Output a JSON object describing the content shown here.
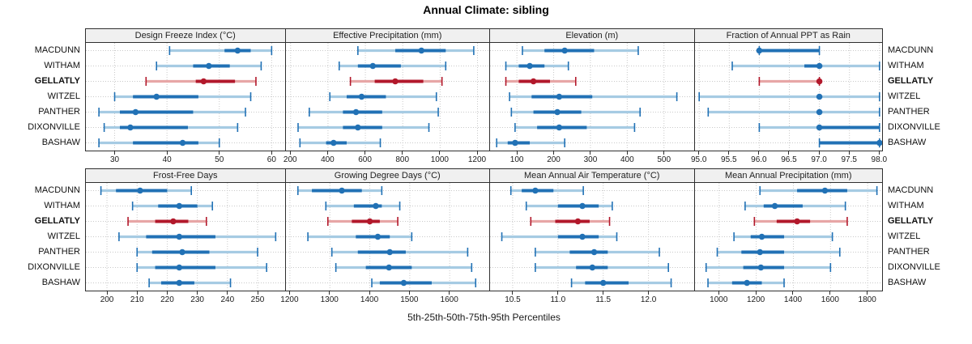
{
  "title": "Annual Climate: sibling",
  "xlabel": "5th-25th-50th-75th-95th Percentiles",
  "sites": [
    "MACDUNN",
    "WITHAM",
    "GELLATLY",
    "WITZEL",
    "PANTHER",
    "DIXONVILLE",
    "BASHAW"
  ],
  "highlight_site": "GELLATLY",
  "colors": {
    "series_dark": "#2171b5",
    "series_light": "#a6cbe3",
    "highlight_dark": "#b2182b",
    "highlight_light": "#e7a6a6",
    "header_bg": "#f0f0f0",
    "grid": "#c9c9c9",
    "border": "#2f2f2f"
  },
  "chart_data": [
    {
      "type": "scatter",
      "subtype": "percentile-interval",
      "title": "Design Freeze Index (°C)",
      "percentiles": [
        "5th",
        "25th",
        "50th",
        "75th",
        "95th"
      ],
      "xlim": [
        24.5,
        62.5
      ],
      "ticks": [
        30,
        40,
        50,
        60
      ],
      "tick_labels": [
        "30",
        "40",
        "50",
        "60"
      ],
      "grid": true,
      "series": [
        {
          "name": "MACDUNN",
          "values": [
            40.5,
            51,
            53.5,
            56,
            60
          ]
        },
        {
          "name": "WITHAM",
          "values": [
            38,
            45,
            48,
            52,
            58
          ]
        },
        {
          "name": "GELLATLY",
          "values": [
            36,
            45.5,
            47,
            53,
            57
          ]
        },
        {
          "name": "WITZEL",
          "values": [
            30,
            33.5,
            38,
            46,
            56
          ]
        },
        {
          "name": "PANTHER",
          "values": [
            27,
            31,
            34,
            45,
            55
          ]
        },
        {
          "name": "DIXONVILLE",
          "values": [
            28,
            31,
            33,
            44,
            53.5
          ]
        },
        {
          "name": "BASHAW",
          "values": [
            27,
            33.5,
            43,
            46,
            50
          ]
        }
      ]
    },
    {
      "type": "scatter",
      "subtype": "percentile-interval",
      "title": "Effective Precipitation (mm)",
      "percentiles": [
        "5th",
        "25th",
        "50th",
        "75th",
        "95th"
      ],
      "xlim": [
        175,
        1265
      ],
      "ticks": [
        200,
        400,
        600,
        800,
        1000,
        1200
      ],
      "tick_labels": [
        "200",
        "400",
        "600",
        "800",
        "1000",
        "1200"
      ],
      "grid": true,
      "series": [
        {
          "name": "MACDUNN",
          "values": [
            560,
            760,
            900,
            1030,
            1180
          ]
        },
        {
          "name": "WITHAM",
          "values": [
            460,
            560,
            640,
            790,
            1030
          ]
        },
        {
          "name": "GELLATLY",
          "values": [
            520,
            650,
            760,
            910,
            1010
          ]
        },
        {
          "name": "WITZEL",
          "values": [
            410,
            500,
            580,
            710,
            980
          ]
        },
        {
          "name": "PANTHER",
          "values": [
            300,
            480,
            550,
            690,
            990
          ]
        },
        {
          "name": "DIXONVILLE",
          "values": [
            240,
            480,
            560,
            690,
            940
          ]
        },
        {
          "name": "BASHAW",
          "values": [
            250,
            390,
            430,
            500,
            680
          ]
        }
      ]
    },
    {
      "type": "scatter",
      "subtype": "percentile-interval",
      "title": "Elevation (m)",
      "percentiles": [
        "5th",
        "25th",
        "50th",
        "75th",
        "95th"
      ],
      "xlim": [
        27,
        581
      ],
      "ticks": [
        100,
        200,
        300,
        400,
        500
      ],
      "tick_labels": [
        "100",
        "200",
        "300",
        "400",
        "500"
      ],
      "grid": true,
      "series": [
        {
          "name": "MACDUNN",
          "values": [
            115,
            175,
            230,
            310,
            430
          ]
        },
        {
          "name": "WITHAM",
          "values": [
            70,
            105,
            135,
            175,
            240
          ]
        },
        {
          "name": "GELLATLY",
          "values": [
            70,
            105,
            145,
            190,
            260
          ]
        },
        {
          "name": "WITZEL",
          "values": [
            80,
            140,
            215,
            305,
            535
          ]
        },
        {
          "name": "PANTHER",
          "values": [
            85,
            145,
            210,
            275,
            435
          ]
        },
        {
          "name": "DIXONVILLE",
          "values": [
            95,
            155,
            215,
            290,
            420
          ]
        },
        {
          "name": "BASHAW",
          "values": [
            45,
            75,
            95,
            135,
            230
          ]
        }
      ]
    },
    {
      "type": "scatter",
      "subtype": "percentile-interval",
      "title": "Fraction of Annual PPT as Rain",
      "percentiles": [
        "5th",
        "25th",
        "50th",
        "75th",
        "95th"
      ],
      "xlim": [
        94.93,
        98.05
      ],
      "ticks": [
        95.0,
        95.5,
        96.0,
        96.5,
        97.0,
        97.5,
        98.0
      ],
      "tick_labels": [
        "95.0",
        "95.5",
        "96.0",
        "96.5",
        "97.0",
        "97.5",
        "98.0"
      ],
      "grid": true,
      "series": [
        {
          "name": "MACDUNN",
          "values": [
            96,
            96,
            96,
            97,
            97
          ]
        },
        {
          "name": "WITHAM",
          "values": [
            95.55,
            96.75,
            97,
            97,
            98
          ]
        },
        {
          "name": "GELLATLY",
          "values": [
            96,
            97,
            97,
            97,
            97
          ]
        },
        {
          "name": "WITZEL",
          "values": [
            95,
            97,
            97,
            97,
            98
          ]
        },
        {
          "name": "PANTHER",
          "values": [
            95.15,
            97,
            97,
            97,
            98
          ]
        },
        {
          "name": "DIXONVILLE",
          "values": [
            96,
            97,
            97,
            98,
            98
          ]
        },
        {
          "name": "BASHAW",
          "values": [
            97,
            97,
            98,
            98,
            98
          ]
        }
      ]
    },
    {
      "type": "scatter",
      "subtype": "percentile-interval",
      "title": "Frost-Free Days",
      "percentiles": [
        "5th",
        "25th",
        "50th",
        "75th",
        "95th"
      ],
      "xlim": [
        193,
        259
      ],
      "ticks": [
        200,
        210,
        220,
        230,
        240,
        250
      ],
      "tick_labels": [
        "200",
        "210",
        "220",
        "230",
        "240",
        "250"
      ],
      "grid": true,
      "series": [
        {
          "name": "MACDUNN",
          "values": [
            198,
            203,
            211,
            220,
            228
          ]
        },
        {
          "name": "WITHAM",
          "values": [
            208.5,
            217,
            224,
            230,
            235
          ]
        },
        {
          "name": "GELLATLY",
          "values": [
            207,
            216,
            222,
            227,
            233
          ]
        },
        {
          "name": "WITZEL",
          "values": [
            204,
            213,
            224,
            236,
            256
          ]
        },
        {
          "name": "PANTHER",
          "values": [
            210,
            215,
            225,
            234,
            250
          ]
        },
        {
          "name": "DIXONVILLE",
          "values": [
            210,
            216,
            224,
            236,
            253
          ]
        },
        {
          "name": "BASHAW",
          "values": [
            214,
            218,
            224,
            229,
            241
          ]
        }
      ]
    },
    {
      "type": "scatter",
      "subtype": "percentile-interval",
      "title": "Growing Degree Days (°C)",
      "percentiles": [
        "5th",
        "25th",
        "50th",
        "75th",
        "95th"
      ],
      "xlim": [
        1190,
        1700
      ],
      "ticks": [
        1200,
        1300,
        1400,
        1500,
        1600
      ],
      "tick_labels": [
        "1200",
        "1300",
        "1400",
        "1500",
        "1600"
      ],
      "grid": true,
      "series": [
        {
          "name": "MACDUNN",
          "values": [
            1220,
            1255,
            1330,
            1380,
            1430
          ]
        },
        {
          "name": "WITHAM",
          "values": [
            1290,
            1360,
            1415,
            1430,
            1475
          ]
        },
        {
          "name": "GELLATLY",
          "values": [
            1295,
            1355,
            1400,
            1425,
            1470
          ]
        },
        {
          "name": "WITZEL",
          "values": [
            1245,
            1365,
            1420,
            1450,
            1505
          ]
        },
        {
          "name": "PANTHER",
          "values": [
            1305,
            1370,
            1450,
            1490,
            1645
          ]
        },
        {
          "name": "DIXONVILLE",
          "values": [
            1315,
            1390,
            1448,
            1505,
            1655
          ]
        },
        {
          "name": "BASHAW",
          "values": [
            1405,
            1425,
            1485,
            1555,
            1665
          ]
        }
      ]
    },
    {
      "type": "scatter",
      "subtype": "percentile-interval",
      "title": "Mean Annual Air Temperature (°C)",
      "percentiles": [
        "5th",
        "25th",
        "50th",
        "75th",
        "95th"
      ],
      "xlim": [
        10.25,
        12.5
      ],
      "ticks": [
        10.5,
        11.0,
        11.5,
        12.0
      ],
      "tick_labels": [
        "10.5",
        "11.0",
        "11.5",
        "12.0"
      ],
      "grid": true,
      "series": [
        {
          "name": "MACDUNN",
          "values": [
            10.48,
            10.6,
            10.75,
            10.95,
            11.28
          ]
        },
        {
          "name": "WITHAM",
          "values": [
            10.65,
            11.0,
            11.27,
            11.45,
            11.6
          ]
        },
        {
          "name": "GELLATLY",
          "values": [
            10.7,
            10.97,
            11.22,
            11.35,
            11.57
          ]
        },
        {
          "name": "WITZEL",
          "values": [
            10.38,
            11.0,
            11.27,
            11.45,
            11.65
          ]
        },
        {
          "name": "PANTHER",
          "values": [
            10.75,
            11.13,
            11.4,
            11.55,
            12.12
          ]
        },
        {
          "name": "DIXONVILLE",
          "values": [
            10.75,
            11.2,
            11.38,
            11.55,
            12.22
          ]
        },
        {
          "name": "BASHAW",
          "values": [
            11.15,
            11.3,
            11.5,
            11.78,
            12.25
          ]
        }
      ]
    },
    {
      "type": "scatter",
      "subtype": "percentile-interval",
      "title": "Mean Annual Precipitation (mm)",
      "percentiles": [
        "5th",
        "25th",
        "50th",
        "75th",
        "95th"
      ],
      "xlim": [
        870,
        1880
      ],
      "ticks": [
        1000,
        1200,
        1400,
        1600,
        1800
      ],
      "tick_labels": [
        "1000",
        "1200",
        "1400",
        "1600",
        "1800"
      ],
      "grid": true,
      "series": [
        {
          "name": "MACDUNN",
          "values": [
            1220,
            1420,
            1570,
            1690,
            1850
          ]
        },
        {
          "name": "WITHAM",
          "values": [
            1140,
            1240,
            1300,
            1450,
            1680
          ]
        },
        {
          "name": "GELLATLY",
          "values": [
            1190,
            1310,
            1420,
            1490,
            1690
          ]
        },
        {
          "name": "WITZEL",
          "values": [
            1080,
            1170,
            1230,
            1350,
            1610
          ]
        },
        {
          "name": "PANTHER",
          "values": [
            990,
            1120,
            1220,
            1350,
            1650
          ]
        },
        {
          "name": "DIXONVILLE",
          "values": [
            930,
            1130,
            1225,
            1350,
            1600
          ]
        },
        {
          "name": "BASHAW",
          "values": [
            940,
            1070,
            1150,
            1230,
            1350
          ]
        }
      ]
    }
  ]
}
